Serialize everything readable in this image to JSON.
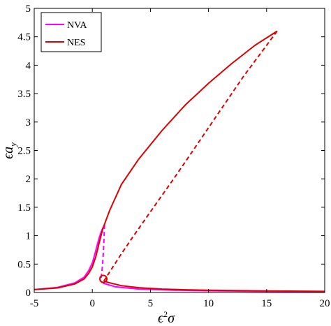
{
  "chart_data": {
    "type": "line",
    "title": "",
    "xlabel_base": "ϵ",
    "xlabel_sup": "2",
    "xlabel_tail": "σ",
    "ylabel_base": "ϵa",
    "ylabel_sub": "y",
    "xlim": [
      -5,
      20
    ],
    "ylim": [
      0,
      5
    ],
    "xticks": [
      "-5",
      "0",
      "5",
      "10",
      "15",
      "20"
    ],
    "yticks": [
      "0",
      "0.5",
      "1",
      "1.5",
      "2",
      "2.5",
      "3",
      "3.5",
      "4",
      "4.5",
      "5"
    ],
    "grid": false,
    "legend_position": "top-left",
    "colors": {
      "NVA": "#ff00ff",
      "NES": "#dd0000"
    },
    "series": [
      {
        "name": "NVA",
        "style": "solid",
        "x": [
          -5,
          -3,
          -1.5,
          -0.7,
          -0.3,
          0,
          0.2,
          0.4,
          0.6,
          0.75,
          0.85,
          0.95,
          1.05
        ],
        "y": [
          0.05,
          0.09,
          0.17,
          0.27,
          0.39,
          0.52,
          0.66,
          0.82,
          0.97,
          1.06,
          1.11,
          1.15,
          1.19
        ]
      },
      {
        "name": "NVA unstable",
        "style": "dashed",
        "x": [
          1.05,
          1.0,
          0.95,
          0.9,
          0.85,
          0.8,
          0.75,
          0.7
        ],
        "y": [
          1.19,
          0.9,
          0.7,
          0.55,
          0.42,
          0.33,
          0.26,
          0.2
        ]
      },
      {
        "name": "NVA lower",
        "style": "solid",
        "x": [
          0.7,
          1,
          2,
          4,
          7,
          10,
          15,
          20
        ],
        "y": [
          0.2,
          0.16,
          0.1,
          0.06,
          0.04,
          0.03,
          0.02,
          0.015
        ]
      },
      {
        "name": "NES",
        "style": "solid",
        "x": [
          -5,
          -3,
          -1.5,
          -0.7,
          -0.3,
          0,
          0.3,
          0.6,
          0.9,
          1.5,
          2.5,
          4,
          6,
          8,
          10,
          12,
          14,
          15.9
        ],
        "y": [
          0.05,
          0.08,
          0.15,
          0.24,
          0.34,
          0.45,
          0.63,
          0.88,
          1.12,
          1.45,
          1.9,
          2.35,
          2.85,
          3.3,
          3.68,
          4.03,
          4.35,
          4.6
        ]
      },
      {
        "name": "NES unstable",
        "style": "dashed",
        "x": [
          15.9,
          15,
          13,
          11,
          9,
          7,
          5,
          3.5,
          2.5,
          1.8,
          1.3,
          1.05,
          1.0
        ],
        "y": [
          4.6,
          4.35,
          3.8,
          3.2,
          2.6,
          2.0,
          1.42,
          0.98,
          0.68,
          0.46,
          0.3,
          0.22,
          0.2
        ]
      },
      {
        "name": "NES lower",
        "style": "solid",
        "x": [
          1.0,
          1.5,
          2.5,
          4,
          6,
          8,
          10,
          13,
          16,
          20
        ],
        "y": [
          0.2,
          0.17,
          0.12,
          0.085,
          0.06,
          0.048,
          0.04,
          0.032,
          0.026,
          0.02
        ]
      }
    ],
    "annotations": [
      {
        "type": "circle",
        "x": 0.95,
        "y": 0.24
      }
    ],
    "legend_entries": [
      "NVA",
      "NES"
    ]
  }
}
